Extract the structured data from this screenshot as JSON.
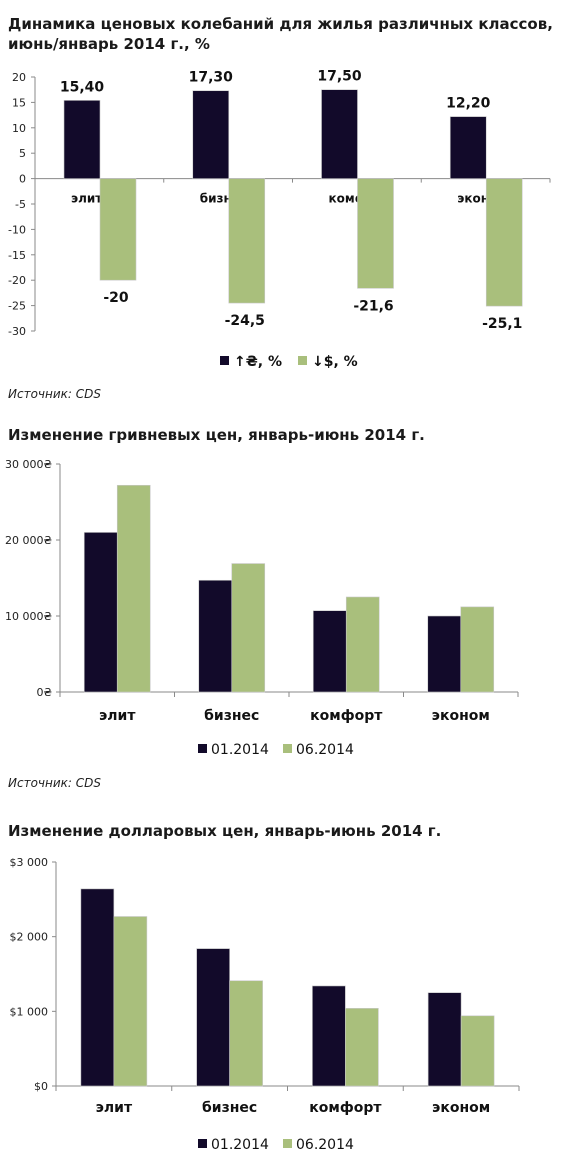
{
  "colors": {
    "dark": "#120a2a",
    "green": "#a9bf7c"
  },
  "chart_data": [
    {
      "type": "bar",
      "title_line1": "Динамика ценовых колебаний для жилья различных классов,",
      "title_line2": "июнь/январь 2014 г., %",
      "categories": [
        "элит",
        "бизнес",
        "комфорт",
        "эконом"
      ],
      "series": [
        {
          "name": "↑₴, %",
          "values": [
            15.4,
            17.3,
            17.5,
            12.2
          ],
          "labels": [
            "15,40",
            "17,30",
            "17,50",
            "12,20"
          ]
        },
        {
          "name": "↓$, %",
          "values": [
            -20,
            -24.5,
            -21.6,
            -25.1
          ],
          "labels": [
            "-20",
            "-24,5",
            "-21,6",
            "-25,1"
          ]
        }
      ],
      "ylim": [
        -30,
        20
      ],
      "yticks": [
        20,
        15,
        10,
        5,
        0,
        -5,
        -10,
        -15,
        -20,
        -25,
        -30
      ],
      "legend": "bottom",
      "source": "Источник: CDS"
    },
    {
      "type": "bar",
      "title": "Изменение гривневых цен, январь-июнь 2014 г.",
      "categories": [
        "элит",
        "бизнес",
        "комфорт",
        "эконом"
      ],
      "series": [
        {
          "name": "01.2014",
          "values": [
            21000,
            14700,
            10700,
            10000
          ]
        },
        {
          "name": "06.2014",
          "values": [
            27200,
            16900,
            12500,
            11200
          ]
        }
      ],
      "ylim": [
        0,
        30000
      ],
      "yticks": [
        0,
        10000,
        20000,
        30000
      ],
      "ytick_labels": [
        "0₴",
        "10 000₴",
        "20 000₴",
        "30 000₴"
      ],
      "legend": "bottom",
      "source": "Источник: CDS"
    },
    {
      "type": "bar",
      "title": "Изменение долларовых цен, январь-июнь 2014 г.",
      "categories": [
        "элит",
        "бизнес",
        "комфорт",
        "эконом"
      ],
      "series": [
        {
          "name": "01.2014",
          "values": [
            2640,
            1840,
            1340,
            1250
          ]
        },
        {
          "name": "06.2014",
          "values": [
            2270,
            1410,
            1040,
            940
          ]
        }
      ],
      "ylim": [
        0,
        3000
      ],
      "yticks": [
        0,
        1000,
        2000,
        3000
      ],
      "ytick_labels": [
        "$0",
        "$1 000",
        "$2 000",
        "$3 000"
      ],
      "legend": "bottom"
    }
  ]
}
